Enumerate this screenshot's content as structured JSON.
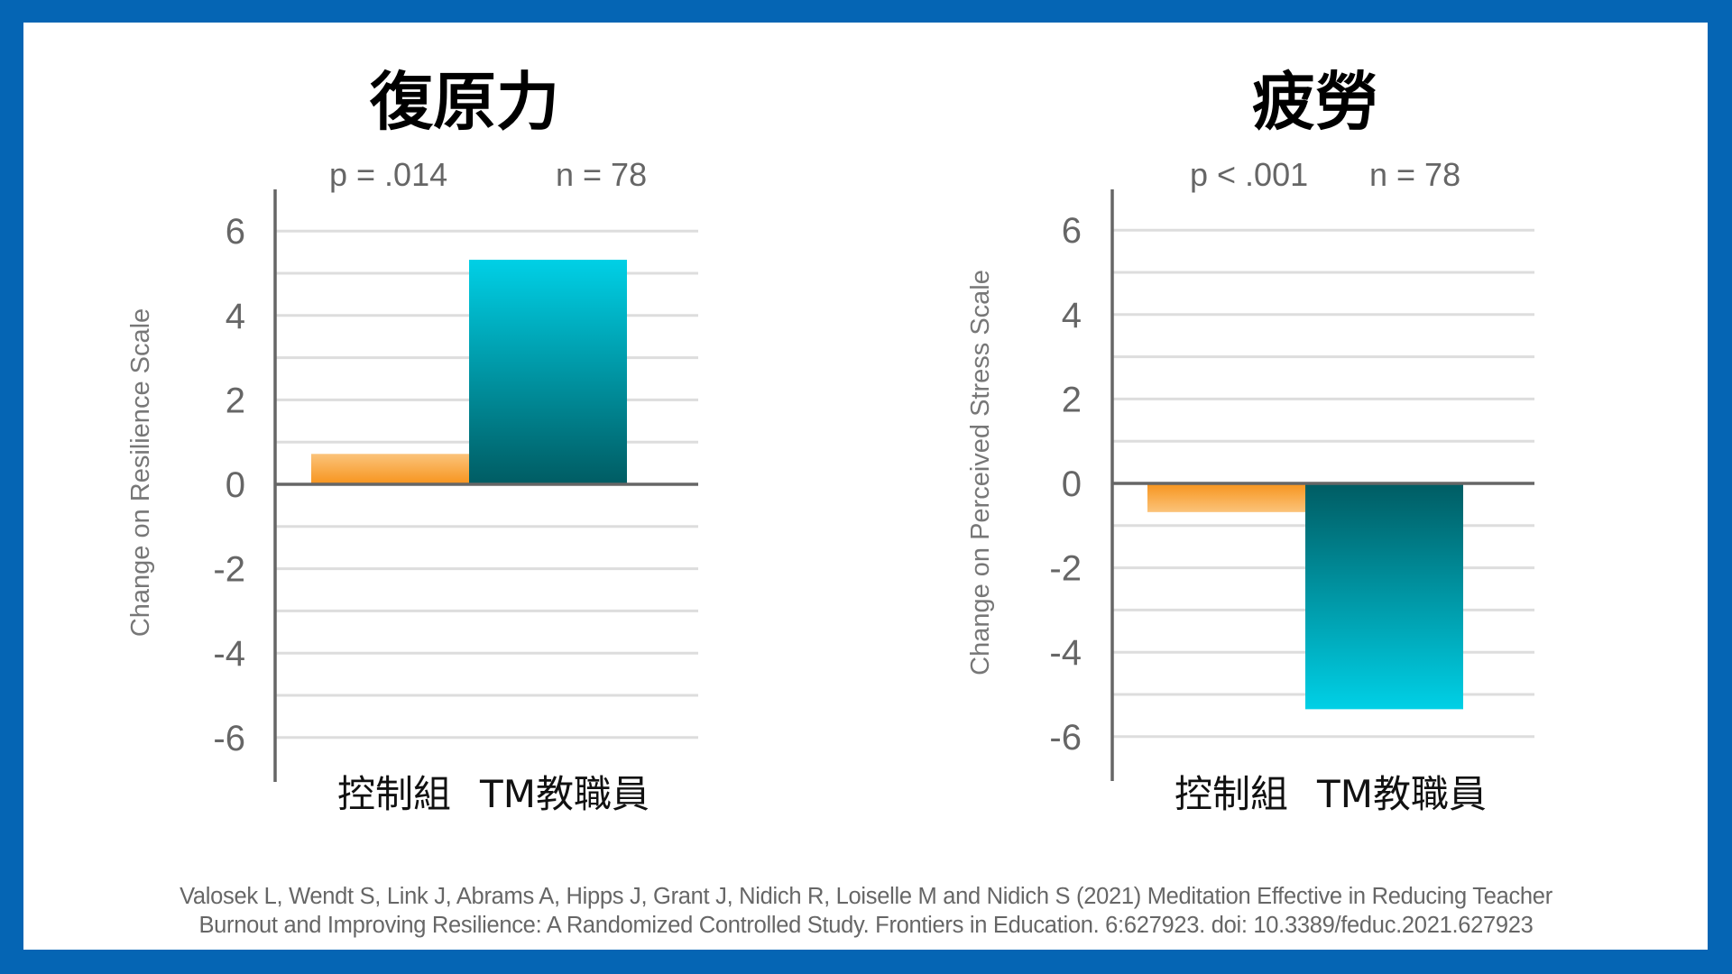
{
  "chart_data": [
    {
      "type": "bar",
      "title": "復原力",
      "stats": {
        "p": "p = .014",
        "n": "n = 78"
      },
      "categories": [
        "控制組",
        "TM教職員"
      ],
      "values": [
        0.72,
        5.32
      ],
      "ylabel": "Change on Resilience Scale",
      "xlabel": "",
      "ylim": [
        -7,
        6.9
      ],
      "yticks": [
        6,
        4,
        2,
        0,
        -2,
        -4,
        -6
      ],
      "ytick_labels": [
        "6",
        "4",
        "2",
        "0",
        "-2",
        "-4",
        "-6"
      ],
      "gridlines_every": 1,
      "grid": true,
      "legend": "none"
    },
    {
      "type": "bar",
      "title": "疲勞",
      "stats": {
        "p": "p < .001",
        "n": "n = 78"
      },
      "categories": [
        "控制組",
        "TM教職員"
      ],
      "values": [
        -0.68,
        -5.35
      ],
      "ylabel": "Change on Perceived Stress Scale",
      "xlabel": "",
      "ylim": [
        -7,
        6.9
      ],
      "yticks": [
        6,
        4,
        2,
        0,
        -2,
        -4,
        -6
      ],
      "ytick_labels": [
        "6",
        "4",
        "2",
        "0",
        "-2",
        "-4",
        "-6"
      ],
      "gridlines_every": 1,
      "grid": true,
      "legend": "none"
    }
  ],
  "colors": {
    "frame": "#0565B4",
    "control_dark": "#F7941D",
    "control_light": "#FBC37A",
    "tm_dark": "#005C63",
    "tm_light": "#00D0E6",
    "gridline": "#DDDDDD",
    "axis": "#666666"
  },
  "citation": {
    "line1": "Valosek L, Wendt S, Link J, Abrams A, Hipps J, Grant J, Nidich R, Loiselle M and Nidich S (2021) Meditation Effective in Reducing Teacher",
    "line2": "Burnout and Improving Resilience: A Randomized Controlled Study. Frontiers in Education. 6:627923. doi: 10.3389/feduc.2021.627923"
  }
}
